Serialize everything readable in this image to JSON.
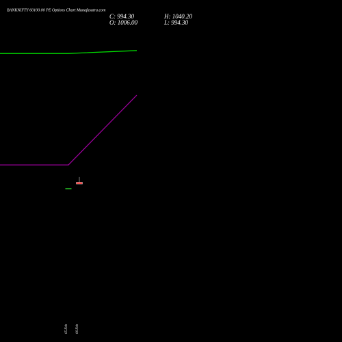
{
  "chart_data": {
    "type": "candlestick",
    "title": "BANKNIFTY 60100.00 PE Options Chart Munafasutra.com",
    "ohlc_labels": {
      "close": "C: 994.30",
      "high": "H: 1040.20",
      "open": "O: 1006.00",
      "low": "L: 994.30"
    },
    "categories": [
      "05 Feb",
      "06 Feb"
    ],
    "open": [
      967,
      1006.0
    ],
    "high": [
      967,
      1040.2
    ],
    "low": [
      967,
      994.3
    ],
    "close": [
      967,
      994.3
    ],
    "up_color": "#22aa22",
    "down_color": "#ff3333",
    "lines": [
      {
        "color": "#00dd00",
        "values": [
          1853,
          1872
        ]
      },
      {
        "color": "#990099",
        "values": [
          1120,
          1579
        ]
      }
    ],
    "ylim": [
      900,
      2000
    ]
  }
}
